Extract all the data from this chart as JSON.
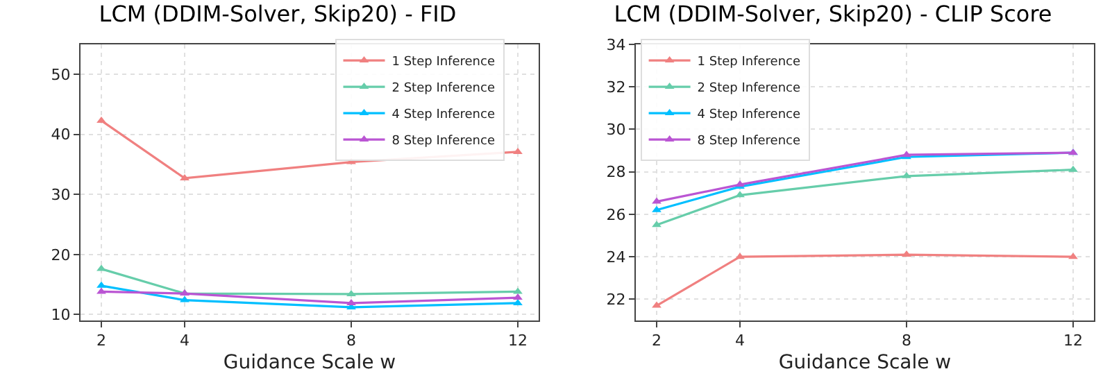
{
  "chart_data": [
    {
      "type": "line",
      "title": "LCM (DDIM-Solver, Skip20) - FID",
      "xlabel": "Guidance Scale w",
      "x": [
        2,
        4,
        8,
        12
      ],
      "xlim": [
        1.5,
        12.5
      ],
      "xticks": [
        2,
        4,
        8,
        12
      ],
      "ylim": [
        9,
        55
      ],
      "yticks": [
        10,
        20,
        30,
        40,
        50
      ],
      "grid": true,
      "legend": "top right",
      "marker": "triangle",
      "line_style": "solid",
      "series": [
        {
          "name": "1 Step Inference",
          "color": "#f08080",
          "values": [
            42.3,
            32.7,
            35.4,
            37.1
          ]
        },
        {
          "name": "2 Step Inference",
          "color": "#66cdaa",
          "values": [
            17.6,
            13.5,
            13.4,
            13.8
          ]
        },
        {
          "name": "4 Step Inference",
          "color": "#00bfff",
          "values": [
            14.8,
            12.4,
            11.2,
            11.9
          ]
        },
        {
          "name": "8 Step Inference",
          "color": "#ba55d3",
          "values": [
            13.8,
            13.5,
            11.9,
            12.8
          ]
        }
      ]
    },
    {
      "type": "line",
      "title": "LCM (DDIM-Solver, Skip20) - CLIP Score",
      "xlabel": "Guidance Scale w",
      "x": [
        2,
        4,
        8,
        12
      ],
      "xlim": [
        1.5,
        12.5
      ],
      "xticks": [
        2,
        4,
        8,
        12
      ],
      "ylim": [
        21,
        34
      ],
      "yticks": [
        22,
        24,
        26,
        28,
        30,
        32,
        34
      ],
      "grid": true,
      "legend": "top left",
      "marker": "triangle",
      "line_style": "solid",
      "series": [
        {
          "name": "1 Step Inference",
          "color": "#f08080",
          "values": [
            21.7,
            24.0,
            24.1,
            24.0
          ]
        },
        {
          "name": "2 Step Inference",
          "color": "#66cdaa",
          "values": [
            25.5,
            26.9,
            27.8,
            28.1
          ]
        },
        {
          "name": "4 Step Inference",
          "color": "#00bfff",
          "values": [
            26.2,
            27.3,
            28.7,
            28.9
          ]
        },
        {
          "name": "8 Step Inference",
          "color": "#ba55d3",
          "values": [
            26.6,
            27.4,
            28.8,
            28.9
          ]
        }
      ]
    }
  ]
}
